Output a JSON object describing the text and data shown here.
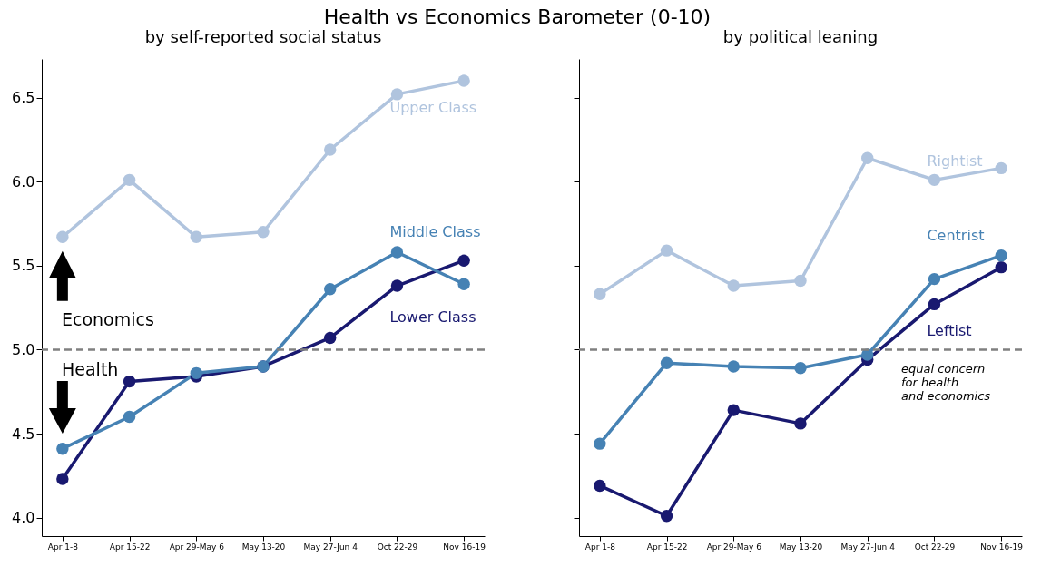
{
  "chart_data": [
    {
      "type": "line",
      "title": "Health vs Economics Barometer (0-10)",
      "subtitle": "by self-reported social status",
      "categories": [
        "Apr 1-8",
        "Apr 15-22",
        "Apr 29-May 6",
        "May 13-20",
        "May 27-Jun 4",
        "Oct 22-29",
        "Nov 16-19"
      ],
      "series": [
        {
          "name": "Upper Class",
          "color": "#b0c4de",
          "values": [
            5.67,
            6.01,
            5.67,
            5.7,
            6.19,
            6.52,
            6.6
          ]
        },
        {
          "name": "Middle Class",
          "color": "#4682b4",
          "values": [
            4.41,
            4.6,
            4.86,
            4.9,
            5.36,
            5.58,
            5.39
          ]
        },
        {
          "name": "Lower Class",
          "color": "#191970",
          "values": [
            4.23,
            4.81,
            4.84,
            4.9,
            5.07,
            5.38,
            5.53
          ]
        }
      ],
      "ylim": [
        3.89,
        6.73
      ],
      "yticks": [
        {
          "value": 4,
          "label": "4.0"
        },
        4.5,
        {
          "value": 5,
          "label": "5.0"
        },
        5.5,
        {
          "value": 6,
          "label": "6.0"
        },
        6.5
      ],
      "marker": "circle",
      "grid": false,
      "legend": false,
      "ref_lines": [
        {
          "axis": "y",
          "value": 5.0,
          "color": "#808080",
          "line_style": "dashed"
        }
      ],
      "annotations": [
        "Economics",
        "Health"
      ]
    },
    {
      "type": "line",
      "title": "by political leaning",
      "categories": [
        "Apr 1-8",
        "Apr 15-22",
        "Apr 29-May 6",
        "May 13-20",
        "May 27-Jun 4",
        "Oct 22-29",
        "Nov 16-19"
      ],
      "series": [
        {
          "name": "Rightist",
          "color": "#b0c4de",
          "values": [
            5.33,
            5.59,
            5.38,
            5.41,
            6.14,
            6.01,
            6.08
          ]
        },
        {
          "name": "Centrist",
          "color": "#4682b4",
          "values": [
            4.44,
            4.92,
            4.9,
            4.89,
            4.97,
            5.42,
            5.56
          ]
        },
        {
          "name": "Leftist",
          "color": "#191970",
          "values": [
            4.19,
            4.01,
            4.64,
            4.56,
            4.94,
            5.27,
            5.49
          ]
        }
      ],
      "ylim": [
        3.89,
        6.73
      ],
      "yticks": [
        4,
        4.5,
        5,
        5.5,
        6,
        6.5
      ],
      "tick_labels": "x",
      "marker": "circle",
      "grid": false,
      "legend": false,
      "ref_lines": [
        {
          "axis": "y",
          "value": 5.0,
          "color": "#808080",
          "line_style": "dashed",
          "label": "equal concern\nfor health\nand economics"
        }
      ]
    }
  ]
}
